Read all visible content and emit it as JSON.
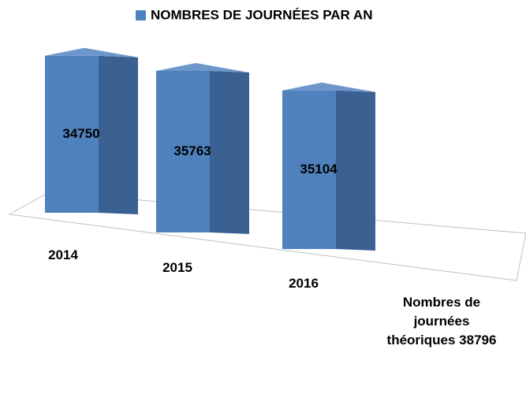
{
  "chart_data": {
    "type": "bar3d",
    "legend": "NOMBRES DE JOURNÉES PAR AN",
    "color": "#4f81bd",
    "categories": [
      "2014",
      "2015",
      "2016",
      "Nombres de journées théoriques 38796"
    ],
    "values": [
      34750,
      35763,
      35104,
      null
    ]
  }
}
